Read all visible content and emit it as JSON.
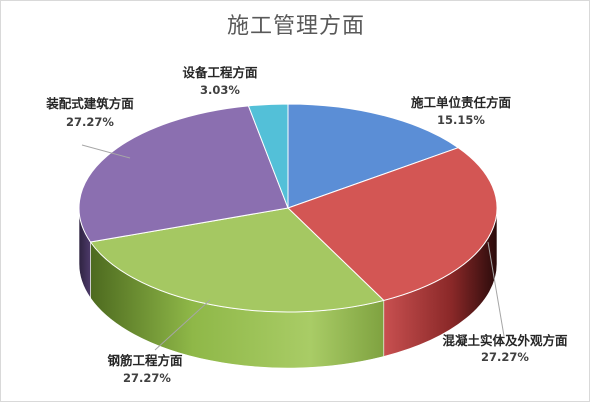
{
  "chart_data": {
    "type": "pie",
    "title": "施工管理方面",
    "slices": [
      {
        "name": "施工单位责任方面",
        "value": 15.15,
        "label": "15.15%",
        "color": "#5b8ed6",
        "side": "#3a6aa8"
      },
      {
        "name": "混凝土实体及外观方面",
        "value": 27.27,
        "label": "27.27%",
        "color": "#d35654",
        "side": "#8c2a2a"
      },
      {
        "name": "钢筋工程方面",
        "value": 27.27,
        "label": "27.27%",
        "color": "#a5c862",
        "side": "#7a9a3c"
      },
      {
        "name": "装配式建筑方面",
        "value": 27.27,
        "label": "27.27%",
        "color": "#8b6fb0",
        "side": "#5f4a80"
      },
      {
        "name": "设备工程方面",
        "value": 3.03,
        "label": "3.03%",
        "color": "#53c0d8",
        "side": "#2e8aa0"
      }
    ]
  }
}
